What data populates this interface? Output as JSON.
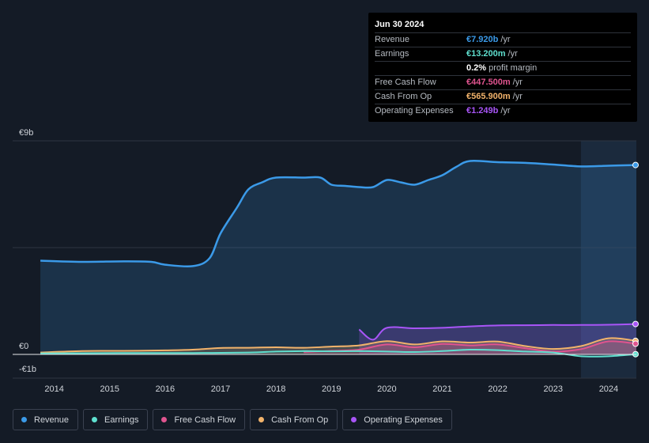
{
  "tooltip": {
    "date": "Jun 30 2024",
    "rows": [
      {
        "label": "Revenue",
        "value": "€7.920b",
        "unit": "/yr",
        "color": "#3b9ae8"
      },
      {
        "label": "Earnings",
        "value": "€13.200m",
        "unit": "/yr",
        "color": "#5fe0cf"
      },
      {
        "label": "",
        "value": "0.2%",
        "unit": "profit margin",
        "color": "#ffffff"
      },
      {
        "label": "Free Cash Flow",
        "value": "€447.500m",
        "unit": "/yr",
        "color": "#e0548f"
      },
      {
        "label": "Cash From Op",
        "value": "€565.900m",
        "unit": "/yr",
        "color": "#f2b36b"
      },
      {
        "label": "Operating Expenses",
        "value": "€1.249b",
        "unit": "/yr",
        "color": "#a855f7"
      }
    ]
  },
  "legend": [
    {
      "label": "Revenue",
      "color": "#3b9ae8"
    },
    {
      "label": "Earnings",
      "color": "#5fe0cf"
    },
    {
      "label": "Free Cash Flow",
      "color": "#e0548f"
    },
    {
      "label": "Cash From Op",
      "color": "#f2b36b"
    },
    {
      "label": "Operating Expenses",
      "color": "#a855f7"
    }
  ],
  "chart_data": {
    "type": "line",
    "ylim": [
      -1,
      9
    ],
    "y_tick_labels": [
      {
        "value": 9,
        "label": "€9b"
      },
      {
        "value": 0,
        "label": "€0"
      },
      {
        "value": -1,
        "label": "-€1b"
      }
    ],
    "x_tick_labels": [
      {
        "value": 2014,
        "label": "2014"
      },
      {
        "value": 2015,
        "label": "2015"
      },
      {
        "value": 2016,
        "label": "2016"
      },
      {
        "value": 2017,
        "label": "2017"
      },
      {
        "value": 2018,
        "label": "2018"
      },
      {
        "value": 2019,
        "label": "2019"
      },
      {
        "value": 2020,
        "label": "2020"
      },
      {
        "value": 2021,
        "label": "2021"
      },
      {
        "value": 2022,
        "label": "2022"
      },
      {
        "value": 2023,
        "label": "2023"
      },
      {
        "value": 2024,
        "label": "2024"
      }
    ],
    "xlim": [
      2013.25,
      2024.5
    ],
    "highlight_start": 2023.5,
    "series": [
      {
        "name": "Revenue",
        "color": "#3b9ae8",
        "fill": true,
        "points": [
          [
            2013.75,
            3.95
          ],
          [
            2014.5,
            3.9
          ],
          [
            2015.25,
            3.92
          ],
          [
            2015.75,
            3.9
          ],
          [
            2016.0,
            3.78
          ],
          [
            2016.5,
            3.72
          ],
          [
            2016.8,
            4.05
          ],
          [
            2017.0,
            5.1
          ],
          [
            2017.3,
            6.2
          ],
          [
            2017.5,
            6.95
          ],
          [
            2017.75,
            7.25
          ],
          [
            2018.0,
            7.45
          ],
          [
            2018.5,
            7.45
          ],
          [
            2018.8,
            7.45
          ],
          [
            2019.0,
            7.15
          ],
          [
            2019.25,
            7.1
          ],
          [
            2019.5,
            7.05
          ],
          [
            2019.75,
            7.05
          ],
          [
            2020.0,
            7.35
          ],
          [
            2020.25,
            7.25
          ],
          [
            2020.5,
            7.15
          ],
          [
            2020.75,
            7.35
          ],
          [
            2021.0,
            7.55
          ],
          [
            2021.25,
            7.9
          ],
          [
            2021.5,
            8.15
          ],
          [
            2022.0,
            8.1
          ],
          [
            2022.5,
            8.07
          ],
          [
            2023.0,
            8.0
          ],
          [
            2023.5,
            7.92
          ],
          [
            2024.0,
            7.95
          ],
          [
            2024.5,
            7.98
          ]
        ]
      },
      {
        "name": "Operating Expenses",
        "color": "#a855f7",
        "fill": true,
        "points": [
          [
            2019.5,
            1.05
          ],
          [
            2019.75,
            0.62
          ],
          [
            2020.0,
            1.12
          ],
          [
            2020.5,
            1.1
          ],
          [
            2021.0,
            1.12
          ],
          [
            2021.5,
            1.18
          ],
          [
            2022.0,
            1.22
          ],
          [
            2022.5,
            1.23
          ],
          [
            2023.0,
            1.24
          ],
          [
            2023.5,
            1.24
          ],
          [
            2024.0,
            1.25
          ],
          [
            2024.5,
            1.28
          ]
        ]
      },
      {
        "name": "Cash From Op",
        "color": "#f2b36b",
        "fill": true,
        "points": [
          [
            2013.75,
            0.08
          ],
          [
            2014.5,
            0.14
          ],
          [
            2015.25,
            0.15
          ],
          [
            2016.0,
            0.17
          ],
          [
            2016.5,
            0.2
          ],
          [
            2017.0,
            0.27
          ],
          [
            2017.5,
            0.28
          ],
          [
            2018.0,
            0.3
          ],
          [
            2018.5,
            0.28
          ],
          [
            2019.0,
            0.33
          ],
          [
            2019.5,
            0.38
          ],
          [
            2020.0,
            0.56
          ],
          [
            2020.5,
            0.42
          ],
          [
            2021.0,
            0.55
          ],
          [
            2021.5,
            0.5
          ],
          [
            2022.0,
            0.54
          ],
          [
            2022.5,
            0.35
          ],
          [
            2023.0,
            0.23
          ],
          [
            2023.5,
            0.35
          ],
          [
            2024.0,
            0.68
          ],
          [
            2024.5,
            0.57
          ]
        ]
      },
      {
        "name": "Free Cash Flow",
        "color": "#e0548f",
        "fill": true,
        "points": [
          [
            2018.5,
            0.1
          ],
          [
            2019.0,
            0.15
          ],
          [
            2019.5,
            0.2
          ],
          [
            2020.0,
            0.42
          ],
          [
            2020.5,
            0.3
          ],
          [
            2021.0,
            0.44
          ],
          [
            2021.5,
            0.38
          ],
          [
            2022.0,
            0.42
          ],
          [
            2022.5,
            0.26
          ],
          [
            2023.0,
            0.12
          ],
          [
            2023.5,
            0.22
          ],
          [
            2024.0,
            0.55
          ],
          [
            2024.5,
            0.45
          ]
        ]
      },
      {
        "name": "Earnings",
        "color": "#5fe0cf",
        "fill": false,
        "points": [
          [
            2013.75,
            0.04
          ],
          [
            2014.5,
            0.05
          ],
          [
            2015.5,
            0.06
          ],
          [
            2016.5,
            0.06
          ],
          [
            2017.5,
            0.08
          ],
          [
            2018.0,
            0.12
          ],
          [
            2018.5,
            0.14
          ],
          [
            2019.0,
            0.13
          ],
          [
            2019.5,
            0.14
          ],
          [
            2020.0,
            0.12
          ],
          [
            2020.5,
            0.1
          ],
          [
            2021.0,
            0.14
          ],
          [
            2021.5,
            0.2
          ],
          [
            2022.0,
            0.18
          ],
          [
            2022.5,
            0.12
          ],
          [
            2023.0,
            0.08
          ],
          [
            2023.5,
            -0.08
          ],
          [
            2024.0,
            -0.08
          ],
          [
            2024.5,
            0.01
          ]
        ]
      }
    ]
  }
}
